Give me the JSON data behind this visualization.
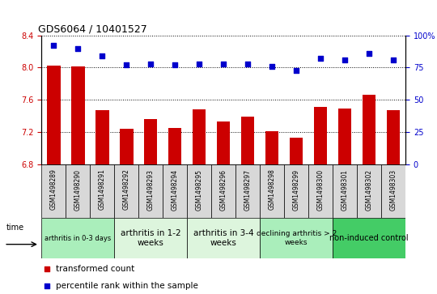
{
  "title": "GDS6064 / 10401527",
  "samples": [
    "GSM1498289",
    "GSM1498290",
    "GSM1498291",
    "GSM1498292",
    "GSM1498293",
    "GSM1498294",
    "GSM1498295",
    "GSM1498296",
    "GSM1498297",
    "GSM1498298",
    "GSM1498299",
    "GSM1498300",
    "GSM1498301",
    "GSM1498302",
    "GSM1498303"
  ],
  "bar_values": [
    8.02,
    8.01,
    7.47,
    7.24,
    7.36,
    7.25,
    7.48,
    7.33,
    7.39,
    7.21,
    7.13,
    7.51,
    7.49,
    7.66,
    7.47
  ],
  "dot_values": [
    92,
    90,
    84,
    77,
    78,
    77,
    78,
    78,
    78,
    76,
    73,
    82,
    81,
    86,
    81
  ],
  "bar_color": "#cc0000",
  "dot_color": "#0000cc",
  "ylim_left": [
    6.8,
    8.4
  ],
  "ylim_right": [
    0,
    100
  ],
  "yticks_left": [
    6.8,
    7.2,
    7.6,
    8.0,
    8.4
  ],
  "yticks_right": [
    0,
    25,
    50,
    75,
    100
  ],
  "groups": [
    {
      "label": "arthritis in 0-3 days",
      "start": 0,
      "end": 2,
      "color": "#aaeebb",
      "fontsize": 6.0
    },
    {
      "label": "arthritis in 1-2\nweeks",
      "start": 3,
      "end": 5,
      "color": "#ddf5dd",
      "fontsize": 7.5
    },
    {
      "label": "arthritis in 3-4\nweeks",
      "start": 6,
      "end": 8,
      "color": "#ddf5dd",
      "fontsize": 7.5
    },
    {
      "label": "declining arthritis > 2\nweeks",
      "start": 9,
      "end": 11,
      "color": "#aaeebb",
      "fontsize": 6.5
    },
    {
      "label": "non-induced control",
      "start": 12,
      "end": 14,
      "color": "#44cc66",
      "fontsize": 7.0
    }
  ],
  "legend_bar_label": "transformed count",
  "legend_dot_label": "percentile rank within the sample"
}
